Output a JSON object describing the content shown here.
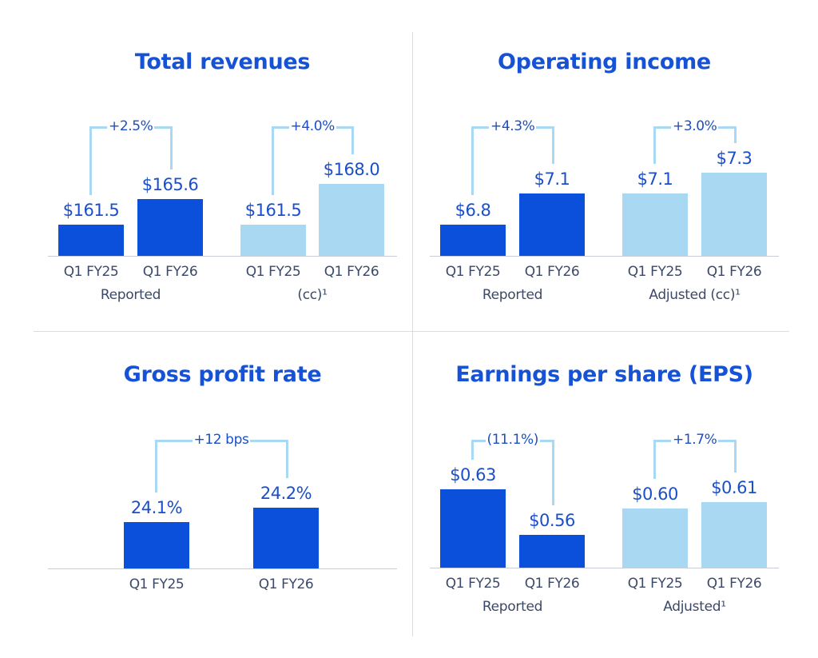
{
  "colors": {
    "reported": "#0a50db",
    "adjusted": "#a9d8f3",
    "title": "#1652d6",
    "value_text": "#1a4fc9",
    "category_text": "#3b4868"
  },
  "chart_data": [
    {
      "type": "bar",
      "title": "Total revenues",
      "categories": [
        "Q1 FY25",
        "Q1 FY26"
      ],
      "groups": [
        {
          "label": "Reported",
          "style": "reported",
          "values": [
            161.5,
            165.6
          ],
          "value_labels": [
            "$161.5",
            "$165.6"
          ],
          "change": "+2.5%"
        },
        {
          "label": "(cc)¹",
          "style": "adjusted",
          "values": [
            161.5,
            168.0
          ],
          "value_labels": [
            "$161.5",
            "$168.0"
          ],
          "change": "+4.0%"
        }
      ]
    },
    {
      "type": "bar",
      "title": "Operating income",
      "categories": [
        "Q1 FY25",
        "Q1 FY26"
      ],
      "groups": [
        {
          "label": "Reported",
          "style": "reported",
          "values": [
            6.8,
            7.1
          ],
          "value_labels": [
            "$6.8",
            "$7.1"
          ],
          "change": "+4.3%"
        },
        {
          "label": "Adjusted (cc)¹",
          "style": "adjusted",
          "values": [
            7.1,
            7.3
          ],
          "value_labels": [
            "$7.1",
            "$7.3"
          ],
          "change": "+3.0%"
        }
      ]
    },
    {
      "type": "bar",
      "title": "Gross profit rate",
      "categories": [
        "Q1 FY25",
        "Q1 FY26"
      ],
      "groups": [
        {
          "label": "",
          "style": "reported",
          "values": [
            24.1,
            24.2
          ],
          "value_labels": [
            "24.1%",
            "24.2%"
          ],
          "change": "+12 bps"
        }
      ]
    },
    {
      "type": "bar",
      "title": "Earnings per share (EPS)",
      "categories": [
        "Q1 FY25",
        "Q1 FY26"
      ],
      "groups": [
        {
          "label": "Reported",
          "style": "reported",
          "values": [
            0.63,
            0.56
          ],
          "value_labels": [
            "$0.63",
            "$0.56"
          ],
          "change": "(11.1%)"
        },
        {
          "label": "Adjusted¹",
          "style": "adjusted",
          "values": [
            0.6,
            0.61
          ],
          "value_labels": [
            "$0.60",
            "$0.61"
          ],
          "change": "+1.7%"
        }
      ]
    }
  ]
}
